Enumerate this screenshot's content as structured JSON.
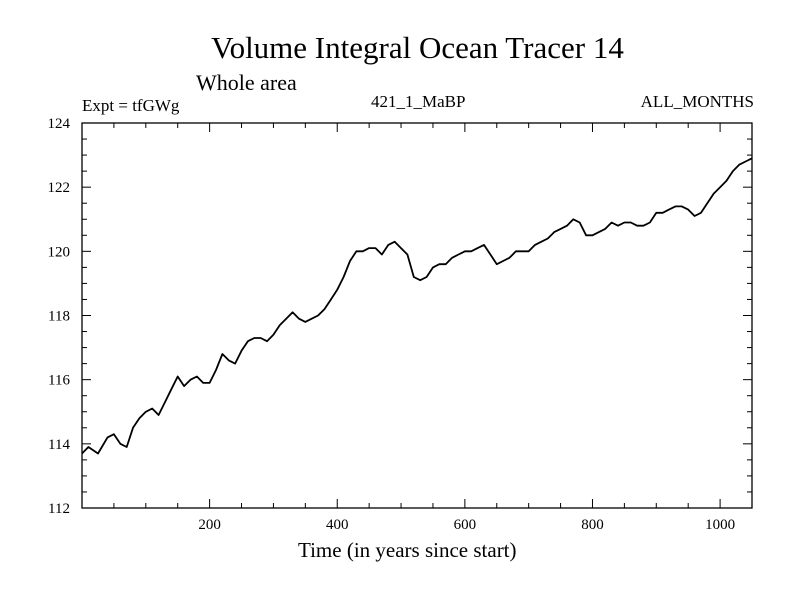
{
  "chart_data": {
    "type": "line",
    "title": "Volume Integral Ocean Tracer 14",
    "subtitle": "Whole area",
    "top_left_label": "Expt = tfGWg",
    "top_center_label": "421_1_MaBP",
    "top_right_label": "ALL_MONTHS",
    "xlabel": "Time (in years since start)",
    "ylabel": "",
    "xlim": [
      0,
      1050
    ],
    "ylim": [
      112,
      124
    ],
    "xticks": [
      200,
      400,
      600,
      800,
      1000
    ],
    "yticks": [
      112,
      114,
      116,
      118,
      120,
      122,
      124
    ],
    "grid": false,
    "series": [
      {
        "name": "tfGWg",
        "color": "#000000",
        "x": [
          0,
          10,
          25,
          40,
          50,
          60,
          70,
          80,
          90,
          100,
          110,
          120,
          130,
          140,
          150,
          160,
          170,
          180,
          190,
          200,
          210,
          220,
          230,
          240,
          250,
          260,
          270,
          280,
          290,
          300,
          310,
          320,
          330,
          340,
          350,
          360,
          370,
          380,
          390,
          400,
          410,
          420,
          430,
          440,
          450,
          460,
          470,
          480,
          490,
          500,
          510,
          520,
          530,
          540,
          550,
          560,
          570,
          580,
          590,
          600,
          610,
          620,
          630,
          640,
          650,
          660,
          670,
          680,
          690,
          700,
          710,
          720,
          730,
          740,
          750,
          760,
          770,
          780,
          790,
          800,
          810,
          820,
          830,
          840,
          850,
          860,
          870,
          880,
          890,
          900,
          910,
          920,
          930,
          940,
          950,
          960,
          970,
          980,
          990,
          1000,
          1010,
          1020,
          1030,
          1040,
          1050
        ],
        "values": [
          113.7,
          113.9,
          113.7,
          114.2,
          114.3,
          114.0,
          113.9,
          114.5,
          114.8,
          115.0,
          115.1,
          114.9,
          115.3,
          115.7,
          116.1,
          115.8,
          116.0,
          116.1,
          115.9,
          115.9,
          116.3,
          116.8,
          116.6,
          116.5,
          116.9,
          117.2,
          117.3,
          117.3,
          117.2,
          117.4,
          117.7,
          117.9,
          118.1,
          117.9,
          117.8,
          117.9,
          118.0,
          118.2,
          118.5,
          118.8,
          119.2,
          119.7,
          120.0,
          120.0,
          120.1,
          120.1,
          119.9,
          120.2,
          120.3,
          120.1,
          119.9,
          119.2,
          119.1,
          119.2,
          119.5,
          119.6,
          119.6,
          119.8,
          119.9,
          120.0,
          120.0,
          120.1,
          120.2,
          119.9,
          119.6,
          119.7,
          119.8,
          120.0,
          120.0,
          120.0,
          120.2,
          120.3,
          120.4,
          120.6,
          120.7,
          120.8,
          121.0,
          120.9,
          120.5,
          120.5,
          120.6,
          120.7,
          120.9,
          120.8,
          120.9,
          120.9,
          120.8,
          120.8,
          120.9,
          121.2,
          121.2,
          121.3,
          121.4,
          121.4,
          121.3,
          121.1,
          121.2,
          121.5,
          121.8,
          122.0,
          122.2,
          122.5,
          122.7,
          122.8,
          122.9
        ]
      }
    ]
  }
}
